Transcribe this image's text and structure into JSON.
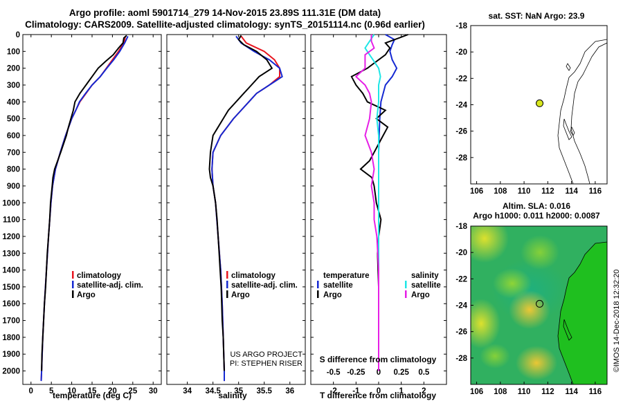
{
  "header": {
    "title_line1": "Argo profile: aoml 5901714_279 14-Nov-2015 23.89S 111.31E (DM data)",
    "title_line2": "Climatology: CARS2009. Satellite-adjusted climatology: synTS_20151114.nc (0.96d earlier)"
  },
  "colors": {
    "climatology": "#e8141e",
    "satellite": "#1428d2",
    "argo": "#000000",
    "satellite_s": "#1ee6e6",
    "argo_s": "#e61ee6",
    "land": "#1fbf1f",
    "float": "#d7e61e"
  },
  "watermark": "©IMOS 14-Dec-2018 12:32:20",
  "chart_data": [
    {
      "type": "line",
      "name": "temperature-profile",
      "xlabel": "temperature (deg C)",
      "xlim": [
        -2,
        32
      ],
      "xticks": [
        "0",
        "5",
        "10",
        "15",
        "20",
        "25",
        "30"
      ],
      "ylim": [
        2080,
        0
      ],
      "yticks": [
        "0",
        "100",
        "200",
        "300",
        "400",
        "500",
        "600",
        "700",
        "800",
        "900",
        "1000",
        "1100",
        "1200",
        "1300",
        "1400",
        "1500",
        "1600",
        "1700",
        "1800",
        "1900",
        "2000"
      ],
      "legend": [
        "climatology",
        "satellite-adj. clim.",
        "Argo"
      ],
      "series": [
        {
          "name": "climatology",
          "depth": [
            10,
            50,
            100,
            150,
            200,
            250,
            300,
            350,
            400,
            450,
            500,
            600,
            700,
            800,
            900,
            1000,
            1200,
            1400,
            1600,
            1800,
            2000,
            2060
          ],
          "values": [
            23.2,
            22.8,
            21.5,
            20.0,
            18.5,
            17.0,
            15.0,
            13.5,
            12.0,
            11.0,
            10.0,
            8.5,
            7.2,
            6.0,
            5.3,
            4.9,
            4.3,
            3.8,
            3.3,
            2.9,
            2.6,
            2.5
          ]
        },
        {
          "name": "satellite-adj. clim.",
          "depth": [
            10,
            50,
            100,
            150,
            200,
            250,
            300,
            350,
            400,
            450,
            500,
            600,
            700,
            800,
            900,
            1000,
            1200,
            1400,
            1600,
            1800,
            2000,
            2060
          ],
          "values": [
            23.8,
            23.0,
            21.8,
            20.3,
            18.6,
            17.0,
            15.0,
            13.4,
            11.9,
            11.0,
            10.0,
            8.5,
            7.2,
            6.0,
            5.3,
            4.9,
            4.3,
            3.8,
            3.3,
            2.9,
            2.6,
            2.5
          ]
        },
        {
          "name": "Argo",
          "depth": [
            5,
            20,
            50,
            80,
            120,
            160,
            200,
            250,
            300,
            350,
            400,
            450,
            500,
            550,
            600,
            700,
            800,
            850,
            900,
            1000,
            1100,
            1200,
            1300,
            1400,
            1500,
            1600,
            1700,
            1800,
            1900,
            2000
          ],
          "values": [
            23.5,
            22.8,
            22.6,
            21.5,
            20.2,
            18.3,
            16.5,
            15.0,
            13.5,
            12.0,
            10.8,
            10.4,
            9.8,
            9.2,
            8.7,
            7.3,
            5.8,
            5.4,
            5.2,
            4.8,
            4.6,
            4.3,
            4.0,
            3.8,
            3.6,
            3.3,
            3.1,
            2.9,
            2.7,
            2.6
          ]
        }
      ]
    },
    {
      "type": "line",
      "name": "salinity-profile",
      "xlabel": "salinity",
      "xlim": [
        33.6,
        36.3
      ],
      "xticks": [
        "34",
        "34.5",
        "35",
        "35.5",
        "36"
      ],
      "ylim": [
        2080,
        0
      ],
      "legend": [
        "climatology",
        "satellite-adj. clim.",
        "Argo"
      ],
      "annotation": [
        "US ARGO PROJECT",
        "PI: STEPHEN RISER"
      ],
      "series": [
        {
          "name": "climatology",
          "depth": [
            10,
            50,
            100,
            150,
            200,
            250,
            300,
            350,
            400,
            450,
            500,
            600,
            700,
            800,
            900,
            1000,
            1200,
            1400,
            1600,
            1800,
            2000,
            2060
          ],
          "values": [
            35.05,
            35.15,
            35.5,
            35.7,
            35.8,
            35.8,
            35.6,
            35.35,
            35.2,
            35.05,
            34.9,
            34.65,
            34.5,
            34.48,
            34.5,
            34.55,
            34.6,
            34.65,
            34.68,
            34.7,
            34.72,
            34.72
          ]
        },
        {
          "name": "satellite-adj. clim.",
          "depth": [
            10,
            50,
            100,
            150,
            200,
            250,
            300,
            350,
            400,
            450,
            500,
            600,
            700,
            800,
            900,
            1000,
            1200,
            1400,
            1600,
            1800,
            2000,
            2060
          ],
          "values": [
            34.95,
            35.05,
            35.3,
            35.6,
            35.8,
            35.85,
            35.6,
            35.35,
            35.2,
            35.05,
            34.9,
            34.65,
            34.5,
            34.48,
            34.5,
            34.55,
            34.6,
            34.65,
            34.68,
            34.7,
            34.72,
            34.72
          ]
        },
        {
          "name": "Argo",
          "depth": [
            5,
            30,
            60,
            100,
            150,
            200,
            250,
            300,
            350,
            400,
            450,
            500,
            550,
            600,
            700,
            800,
            850,
            900,
            1000,
            1100,
            1200,
            1300,
            1400,
            1500,
            1600,
            1700,
            1800,
            1900,
            2000
          ],
          "values": [
            35.05,
            35.0,
            35.1,
            35.35,
            35.55,
            35.65,
            35.4,
            35.25,
            35.1,
            34.95,
            34.8,
            34.7,
            34.6,
            34.5,
            34.45,
            34.43,
            34.45,
            34.5,
            34.55,
            34.58,
            34.6,
            34.62,
            34.64,
            34.66,
            34.67,
            34.68,
            34.7,
            34.71,
            34.72
          ]
        }
      ]
    },
    {
      "type": "line",
      "name": "difference-profile",
      "xlabel": "T difference from climatology",
      "xlabel_top": "S difference from climatology",
      "xlim": [
        -3,
        3
      ],
      "xticks": [
        "-2",
        "-1",
        "0",
        "1",
        "2"
      ],
      "xticks_top": [
        "-0.5",
        "-0.25",
        "0",
        "0.25",
        "0.5"
      ],
      "ylim": [
        2080,
        0
      ],
      "legend": {
        "temperature": [
          "satellite",
          "Argo"
        ],
        "salinity": [
          "satellite",
          "Argo"
        ]
      },
      "series": [
        {
          "name": "temperature satellite",
          "depth": [
            0,
            30,
            60,
            100,
            150,
            200,
            250,
            300,
            400,
            500,
            700,
            900,
            1200,
            1500,
            2000
          ],
          "values": [
            0.3,
            0.7,
            0.6,
            0.5,
            0.6,
            0.8,
            0.6,
            0.3,
            0.1,
            0.05,
            0.0,
            0.0,
            0.0,
            0.0,
            0.0
          ]
        },
        {
          "name": "temperature Argo",
          "depth": [
            0,
            20,
            50,
            80,
            120,
            160,
            200,
            250,
            300,
            350,
            400,
            450,
            500,
            550,
            600,
            650,
            700,
            750,
            800,
            850,
            900,
            1000,
            1100,
            1200,
            1300,
            1500,
            1700,
            2000
          ],
          "values": [
            1.3,
            0.9,
            0.3,
            0.5,
            0.3,
            -0.1,
            -0.5,
            -1.2,
            -1.0,
            -0.7,
            -0.5,
            0.3,
            -0.1,
            0.4,
            0.2,
            0.0,
            -0.2,
            -0.4,
            -0.8,
            -0.3,
            -0.2,
            -0.1,
            0.1,
            0.0,
            -0.05,
            0.0,
            0.0,
            0.0
          ]
        },
        {
          "name": "salinity satellite",
          "depth": [
            0,
            40,
            80,
            120,
            160,
            200,
            250,
            300,
            400,
            500,
            600,
            700,
            800,
            1000,
            1200,
            1500,
            2000
          ],
          "values": [
            -0.05,
            -0.1,
            -0.15,
            -0.1,
            -0.05,
            0.0,
            0.02,
            0.0,
            0.0,
            -0.02,
            0.0,
            0.0,
            0.0,
            0.0,
            0.0,
            0.0,
            0.0
          ]
        },
        {
          "name": "salinity Argo",
          "depth": [
            0,
            40,
            80,
            120,
            160,
            200,
            250,
            300,
            350,
            400,
            500,
            600,
            700,
            800,
            900,
            1000,
            1100,
            1200,
            1400,
            1600,
            2000
          ],
          "values": [
            -0.08,
            -0.08,
            -0.05,
            -0.15,
            -0.15,
            -0.15,
            -0.25,
            -0.15,
            -0.1,
            -0.08,
            -0.1,
            -0.15,
            -0.08,
            -0.05,
            -0.08,
            -0.05,
            -0.05,
            -0.02,
            0.0,
            0.0,
            0.0
          ]
        }
      ]
    },
    {
      "type": "scatter",
      "name": "sst-map",
      "title": "sat. SST: NaN Argo: 23.9",
      "xlim": [
        105.5,
        117
      ],
      "ylim": [
        -30,
        -18
      ],
      "xticks": [
        "106",
        "108",
        "110",
        "112",
        "114",
        "116"
      ],
      "yticks": [
        "-18",
        "-20",
        "-22",
        "-24",
        "-26",
        "-28"
      ],
      "points": [
        {
          "lon": 111.31,
          "lat": -23.89
        }
      ]
    },
    {
      "type": "heatmap",
      "name": "sla-map",
      "title": "Altim. SLA: 0.016",
      "subtitle": "Argo h1000: 0.011 h2000: 0.0087",
      "xlim": [
        105.5,
        117
      ],
      "ylim": [
        -30,
        -18
      ],
      "xticks": [
        "106",
        "108",
        "110",
        "112",
        "114",
        "116"
      ],
      "yticks": [
        "-18",
        "-20",
        "-22",
        "-24",
        "-26",
        "-28"
      ],
      "points": [
        {
          "lon": 111.31,
          "lat": -23.89
        }
      ]
    }
  ]
}
